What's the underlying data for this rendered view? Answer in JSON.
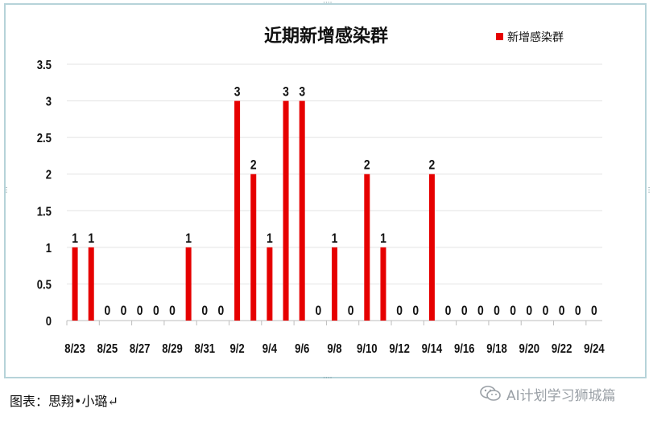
{
  "chart_data": {
    "type": "bar",
    "title": "近期新增感染群",
    "legend": {
      "label": "新增感染群",
      "position": "top-right"
    },
    "series": [
      {
        "name": "新增感染群",
        "color": "#e60000",
        "points": [
          {
            "date": "8/23",
            "value": 1
          },
          {
            "date": "8/24",
            "value": 1
          },
          {
            "date": "8/25",
            "value": 0
          },
          {
            "date": "8/26",
            "value": 0
          },
          {
            "date": "8/27",
            "value": 0
          },
          {
            "date": "8/28",
            "value": 0
          },
          {
            "date": "8/29",
            "value": 0
          },
          {
            "date": "8/30",
            "value": 1
          },
          {
            "date": "8/31",
            "value": 0
          },
          {
            "date": "9/1",
            "value": 0
          },
          {
            "date": "9/2",
            "value": 3
          },
          {
            "date": "9/3",
            "value": 2
          },
          {
            "date": "9/4",
            "value": 1
          },
          {
            "date": "9/5",
            "value": 3
          },
          {
            "date": "9/6",
            "value": 3
          },
          {
            "date": "9/7",
            "value": 0
          },
          {
            "date": "9/8",
            "value": 1
          },
          {
            "date": "9/9",
            "value": 0
          },
          {
            "date": "9/10",
            "value": 2
          },
          {
            "date": "9/11",
            "value": 1
          },
          {
            "date": "9/12",
            "value": 0
          },
          {
            "date": "9/13",
            "value": 0
          },
          {
            "date": "9/14",
            "value": 2
          },
          {
            "date": "9/15",
            "value": 0
          },
          {
            "date": "9/16",
            "value": 0
          },
          {
            "date": "9/17",
            "value": 0
          },
          {
            "date": "9/18",
            "value": 0
          },
          {
            "date": "9/19",
            "value": 0
          },
          {
            "date": "9/20",
            "value": 0
          },
          {
            "date": "9/21",
            "value": 0
          },
          {
            "date": "9/22",
            "value": 0
          },
          {
            "date": "9/23",
            "value": 0
          },
          {
            "date": "9/24",
            "value": 0
          }
        ]
      }
    ],
    "x_tick_labels": [
      "8/23",
      "8/25",
      "8/27",
      "8/29",
      "8/31",
      "9/2",
      "9/4",
      "9/6",
      "9/8",
      "9/10",
      "9/12",
      "9/14",
      "9/16",
      "9/18",
      "9/20",
      "9/22",
      "9/24"
    ],
    "y_ticks": [
      "0",
      "0.5",
      "1",
      "1.5",
      "2",
      "2.5",
      "3",
      "3.5"
    ],
    "ylim": [
      0,
      3.5
    ],
    "grid": true,
    "xlabel": "",
    "ylabel": ""
  },
  "caption": "图表：思翔•小璐↵",
  "watermark": {
    "text": "AI计划学习狮城篇",
    "icon": "wechat-icon"
  }
}
